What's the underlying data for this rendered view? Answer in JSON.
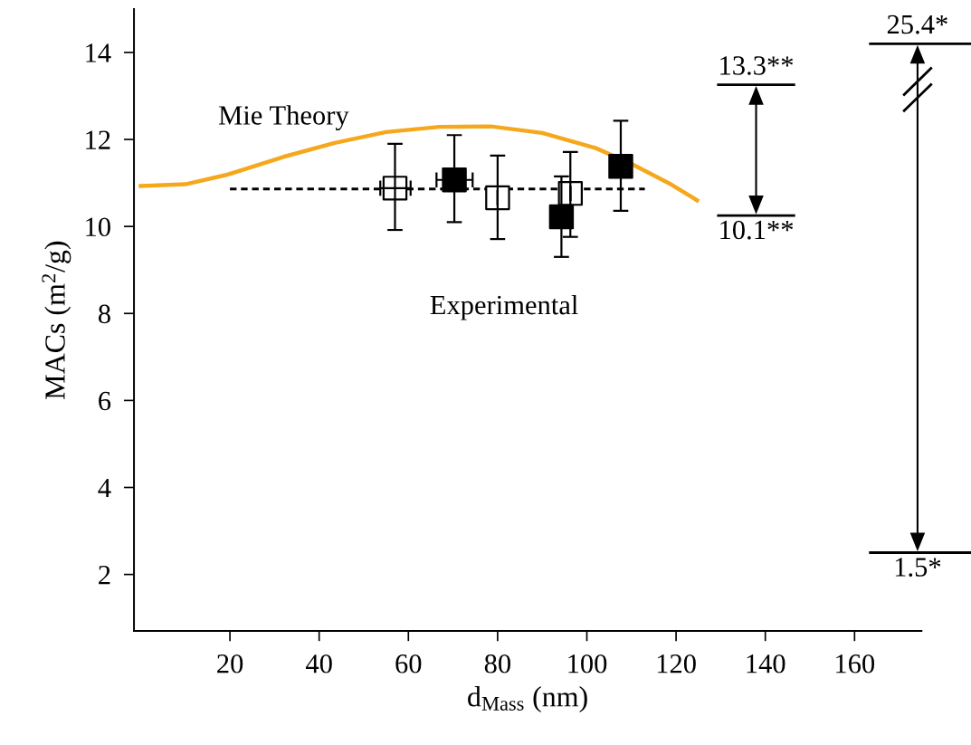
{
  "chart_data": {
    "type": "line",
    "xlabel": "d$_{Mass}$ (nm)",
    "ylabel": "MACs (m$^{2}$/g)",
    "xlim": [
      -1.5,
      175
    ],
    "ylim": [
      0.7,
      15
    ],
    "xticks": [
      20,
      40,
      60,
      80,
      100,
      120,
      140,
      160
    ],
    "yticks": [
      2,
      4,
      6,
      8,
      10,
      12,
      14
    ],
    "grid": false,
    "legend": false,
    "series": [
      {
        "color": "#f5a81c",
        "line_style": "solid",
        "marker": "none",
        "x": [
          0,
          10,
          19.4,
          32,
          43.5,
          55,
          67,
          78.5,
          90,
          102,
          110,
          119,
          124.7
        ],
        "values": [
          10.93,
          10.97,
          11.19,
          11.6,
          11.92,
          12.17,
          12.29,
          12.3,
          12.15,
          11.8,
          11.44,
          10.96,
          10.6
        ]
      },
      {
        "color": "#000000",
        "line_style": "dashed",
        "marker": "none",
        "x": [
          20,
          113
        ],
        "values": [
          10.86,
          10.86
        ]
      },
      {
        "type": "scatter",
        "color": "#ffffff",
        "marker": "square",
        "x": [
          57,
          80,
          96.3
        ],
        "values": [
          10.88,
          10.66,
          10.76
        ],
        "errors": [
          [
            9.92,
            11.9
          ],
          [
            9.71,
            11.63
          ],
          [
            9.76,
            11.71
          ]
        ],
        "xerrors": [
          [
            53.7,
            60.5
          ],
          null,
          null
        ]
      },
      {
        "type": "scatter",
        "color": "#000000",
        "marker": "square",
        "x": [
          70.3,
          94.3,
          107.6
        ],
        "values": [
          11.07,
          10.22,
          11.38
        ],
        "errors": [
          [
            10.1,
            12.1
          ],
          [
            9.3,
            11.15
          ],
          [
            10.36,
            12.43
          ]
        ],
        "xerrors": [
          [
            66.3,
            74.4
          ],
          null,
          null
        ]
      }
    ],
    "annotations": [
      "Mie Theory",
      "Experimental",
      "13.3**",
      "10.1**",
      "25.4*",
      "1.5*"
    ]
  }
}
